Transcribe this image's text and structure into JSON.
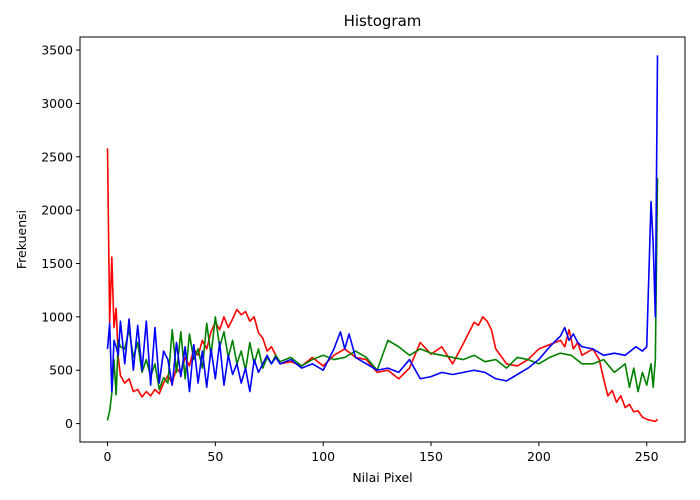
{
  "chart_data": {
    "type": "line",
    "title": "Histogram",
    "xlabel": "Nilai Pixel",
    "ylabel": "Frekuensi",
    "xlim": [
      -12.75,
      267.75
    ],
    "ylim": [
      -172.5,
      3622.5
    ],
    "xticks": [
      0,
      50,
      100,
      150,
      200,
      250
    ],
    "yticks": [
      0,
      500,
      1000,
      1500,
      2000,
      2500,
      3000,
      3500
    ],
    "grid": false,
    "series": [
      {
        "color": "#ff0000",
        "x": [
          0,
          1,
          2,
          3,
          4,
          5,
          6,
          8,
          10,
          12,
          14,
          16,
          18,
          20,
          22,
          24,
          26,
          28,
          30,
          32,
          34,
          36,
          38,
          40,
          42,
          44,
          46,
          48,
          50,
          52,
          54,
          56,
          58,
          60,
          62,
          64,
          66,
          68,
          70,
          72,
          74,
          76,
          78,
          80,
          85,
          90,
          95,
          100,
          105,
          110,
          115,
          120,
          125,
          130,
          135,
          140,
          145,
          150,
          155,
          160,
          165,
          170,
          172,
          174,
          176,
          178,
          180,
          185,
          190,
          195,
          200,
          205,
          210,
          212,
          214,
          216,
          218,
          220,
          225,
          228,
          230,
          232,
          234,
          236,
          238,
          240,
          242,
          244,
          246,
          248,
          250,
          252,
          254,
          255
        ],
        "values": [
          2580,
          950,
          1560,
          900,
          1080,
          620,
          450,
          380,
          420,
          300,
          320,
          250,
          300,
          260,
          320,
          280,
          380,
          450,
          380,
          520,
          470,
          620,
          540,
          700,
          640,
          780,
          700,
          860,
          950,
          880,
          1000,
          900,
          980,
          1070,
          1020,
          1050,
          960,
          1000,
          850,
          800,
          680,
          720,
          640,
          560,
          580,
          540,
          620,
          540,
          640,
          700,
          620,
          600,
          480,
          500,
          420,
          520,
          760,
          650,
          720,
          560,
          750,
          950,
          920,
          1000,
          960,
          880,
          700,
          560,
          540,
          600,
          700,
          740,
          780,
          720,
          880,
          700,
          760,
          640,
          700,
          600,
          420,
          260,
          310,
          200,
          260,
          150,
          180,
          110,
          120,
          60,
          40,
          30,
          20,
          40
        ]
      },
      {
        "color": "#008000",
        "x": [
          0,
          1,
          2,
          3,
          4,
          5,
          6,
          8,
          10,
          12,
          14,
          16,
          18,
          20,
          22,
          24,
          26,
          28,
          30,
          32,
          34,
          36,
          38,
          40,
          42,
          44,
          46,
          48,
          50,
          52,
          54,
          56,
          58,
          60,
          62,
          64,
          66,
          68,
          70,
          72,
          74,
          76,
          78,
          80,
          85,
          90,
          95,
          100,
          105,
          110,
          115,
          120,
          125,
          130,
          135,
          140,
          145,
          150,
          155,
          160,
          165,
          170,
          175,
          180,
          185,
          190,
          195,
          200,
          205,
          210,
          215,
          220,
          225,
          230,
          235,
          240,
          242,
          244,
          246,
          248,
          250,
          252,
          253,
          254,
          255
        ],
        "values": [
          30,
          120,
          280,
          600,
          270,
          780,
          720,
          700,
          880,
          620,
          760,
          480,
          600,
          440,
          560,
          320,
          430,
          380,
          880,
          480,
          860,
          420,
          840,
          600,
          700,
          520,
          940,
          640,
          1000,
          720,
          860,
          620,
          780,
          560,
          680,
          500,
          760,
          560,
          700,
          520,
          620,
          560,
          640,
          580,
          620,
          540,
          600,
          640,
          600,
          620,
          680,
          620,
          500,
          780,
          720,
          640,
          700,
          660,
          640,
          620,
          600,
          640,
          580,
          600,
          520,
          620,
          600,
          560,
          620,
          660,
          640,
          560,
          560,
          600,
          480,
          560,
          340,
          520,
          300,
          480,
          360,
          560,
          340,
          600,
          2300
        ]
      },
      {
        "color": "#0000ff",
        "x": [
          0,
          1,
          2,
          3,
          4,
          5,
          6,
          8,
          10,
          12,
          14,
          16,
          18,
          20,
          22,
          24,
          26,
          28,
          30,
          32,
          34,
          36,
          38,
          40,
          42,
          44,
          46,
          48,
          50,
          52,
          54,
          56,
          58,
          60,
          62,
          64,
          66,
          68,
          70,
          72,
          74,
          76,
          78,
          80,
          85,
          90,
          95,
          100,
          105,
          108,
          110,
          112,
          115,
          120,
          125,
          130,
          135,
          140,
          145,
          150,
          155,
          160,
          165,
          170,
          175,
          180,
          185,
          190,
          195,
          200,
          205,
          210,
          212,
          214,
          216,
          218,
          220,
          225,
          230,
          235,
          240,
          245,
          248,
          250,
          252,
          253,
          254,
          255
        ],
        "values": [
          700,
          940,
          300,
          780,
          720,
          640,
          960,
          560,
          980,
          500,
          920,
          500,
          960,
          360,
          900,
          380,
          680,
          600,
          360,
          760,
          440,
          720,
          300,
          740,
          380,
          680,
          340,
          700,
          420,
          760,
          360,
          640,
          460,
          560,
          380,
          520,
          300,
          600,
          480,
          560,
          640,
          560,
          620,
          560,
          600,
          520,
          560,
          500,
          700,
          860,
          700,
          840,
          620,
          560,
          500,
          520,
          480,
          600,
          420,
          440,
          480,
          460,
          480,
          500,
          480,
          420,
          400,
          460,
          520,
          600,
          720,
          820,
          900,
          780,
          840,
          760,
          720,
          700,
          640,
          660,
          640,
          720,
          680,
          720,
          2080,
          1680,
          1000,
          3450
        ]
      }
    ]
  }
}
